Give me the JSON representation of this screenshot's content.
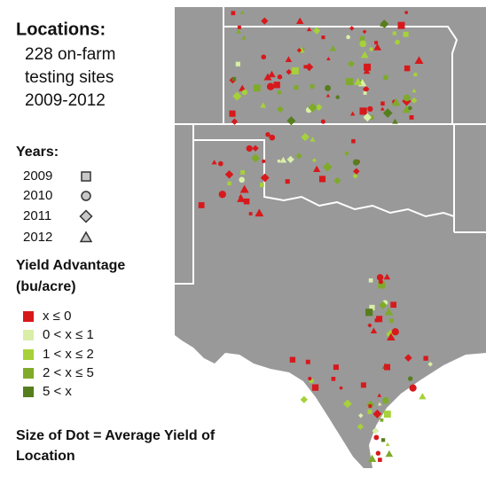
{
  "legend": {
    "locations_title": "Locations:",
    "locations_lines": [
      "228  on-farm",
      "testing sites",
      "2009-2012"
    ],
    "years_title": "Years:",
    "years": [
      {
        "label": "2009",
        "shape": "square"
      },
      {
        "label": "2010",
        "shape": "circle"
      },
      {
        "label": "2011",
        "shape": "diamond"
      },
      {
        "label": "2012",
        "shape": "triangle"
      }
    ],
    "yield_title": [
      "Yield Advantage",
      "(bu/acre)"
    ],
    "yield_classes": [
      {
        "label": "x ≤ 0",
        "color": "#d7191c"
      },
      {
        "label": "0 < x ≤ 1",
        "color": "#d9efa8"
      },
      {
        "label": "1 < x ≤ 2",
        "color": "#a6d13a"
      },
      {
        "label": "2 < x ≤ 5",
        "color": "#7faa2a"
      },
      {
        "label": "5 < x",
        "color": "#577e1d"
      }
    ],
    "size_note": [
      "Size of Dot = Average Yield of",
      "Location"
    ]
  }
}
